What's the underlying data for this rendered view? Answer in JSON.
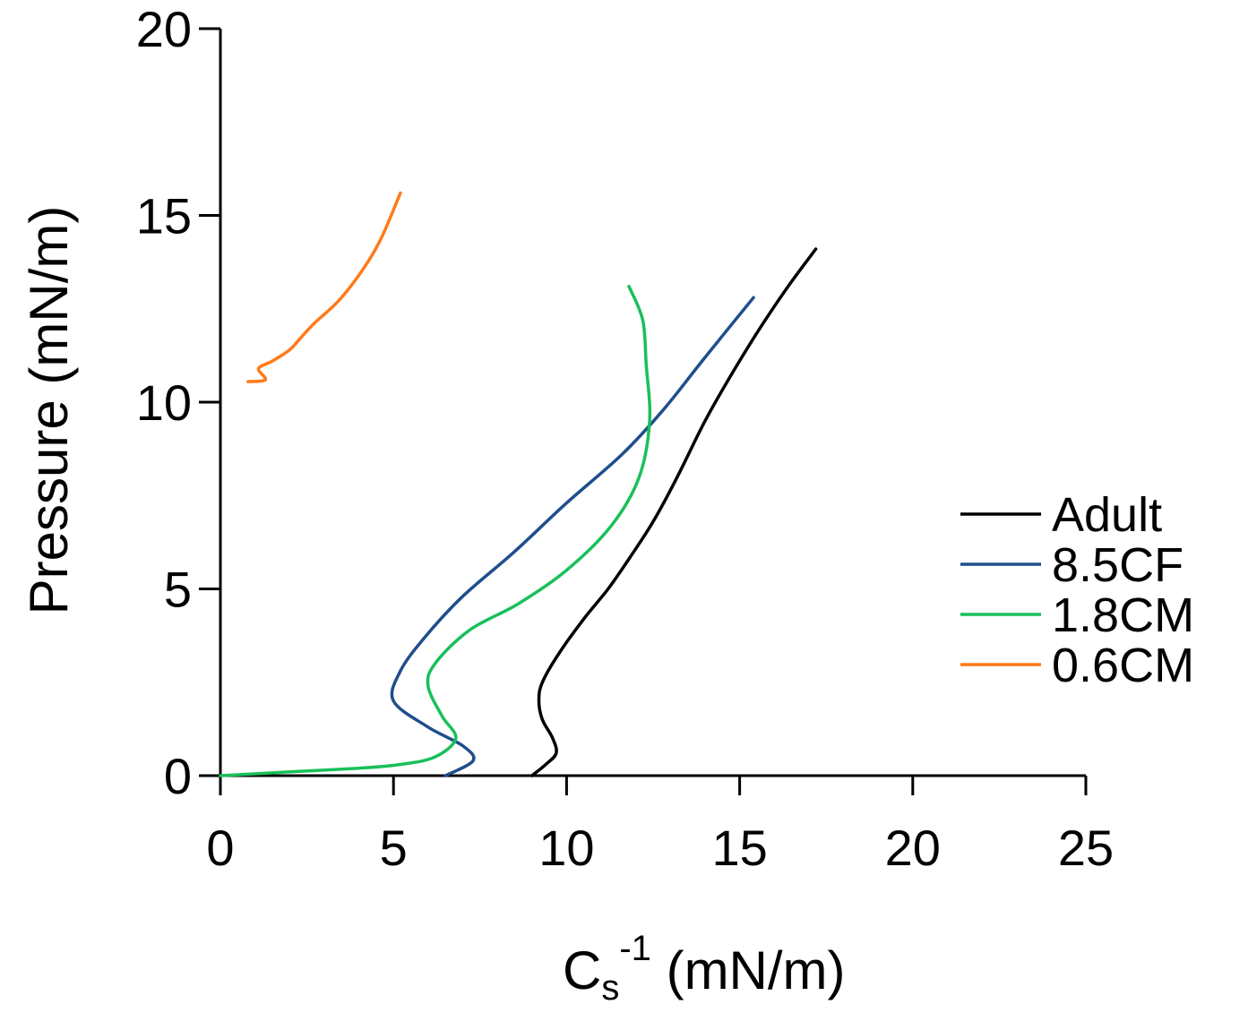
{
  "chart_data": {
    "type": "line",
    "title": "",
    "xlabel_main": "C",
    "xlabel_sub": "s",
    "xlabel_sup": "-1",
    "xlabel_unit": " (mN/m)",
    "ylabel": "Pressure (mN/m)",
    "xlim": [
      0,
      25
    ],
    "ylim": [
      0,
      20
    ],
    "xticks": [
      0,
      5,
      10,
      15,
      20,
      25
    ],
    "yticks": [
      0,
      5,
      10,
      15,
      20
    ],
    "grid": false,
    "legend_position": "right",
    "series": [
      {
        "name": "Adult",
        "color": "#000000",
        "x": [
          9.0,
          9.4,
          9.7,
          9.6,
          9.3,
          9.2,
          9.3,
          9.8,
          10.5,
          11.2,
          11.8,
          12.5,
          13.2,
          14.0,
          14.8,
          15.6,
          16.4,
          17.2
        ],
        "y": [
          0.0,
          0.3,
          0.6,
          1.0,
          1.5,
          2.0,
          2.5,
          3.3,
          4.2,
          5.0,
          5.8,
          6.8,
          8.0,
          9.5,
          10.8,
          12.0,
          13.1,
          14.1
        ]
      },
      {
        "name": "8.5CF",
        "color": "#1f4e8c",
        "x": [
          6.5,
          7.3,
          7.0,
          6.0,
          5.0,
          5.2,
          5.9,
          7.0,
          8.5,
          10.0,
          11.6,
          12.8,
          14.0,
          15.4
        ],
        "y": [
          0.0,
          0.4,
          0.8,
          1.3,
          2.0,
          2.8,
          3.7,
          4.8,
          6.0,
          7.3,
          8.6,
          9.8,
          11.2,
          12.8
        ]
      },
      {
        "name": "1.8CM",
        "color": "#19c05a",
        "x": [
          0.0,
          2.0,
          4.0,
          5.2,
          6.2,
          6.8,
          6.4,
          6.0,
          6.2,
          7.2,
          8.6,
          10.0,
          11.3,
          12.1,
          12.4,
          12.3,
          12.2,
          11.8
        ],
        "y": [
          0.0,
          0.1,
          0.2,
          0.3,
          0.5,
          1.0,
          1.6,
          2.4,
          3.0,
          3.9,
          4.6,
          5.5,
          6.7,
          8.0,
          9.5,
          11.0,
          12.2,
          13.1
        ]
      },
      {
        "name": "0.6CM",
        "color": "#ff7a1a",
        "x": [
          0.8,
          1.3,
          1.1,
          1.5,
          2.0,
          2.3,
          2.7,
          3.4,
          4.0,
          4.6,
          5.2
        ],
        "y": [
          10.55,
          10.6,
          10.9,
          11.1,
          11.4,
          11.7,
          12.1,
          12.7,
          13.4,
          14.3,
          15.6
        ]
      }
    ]
  }
}
